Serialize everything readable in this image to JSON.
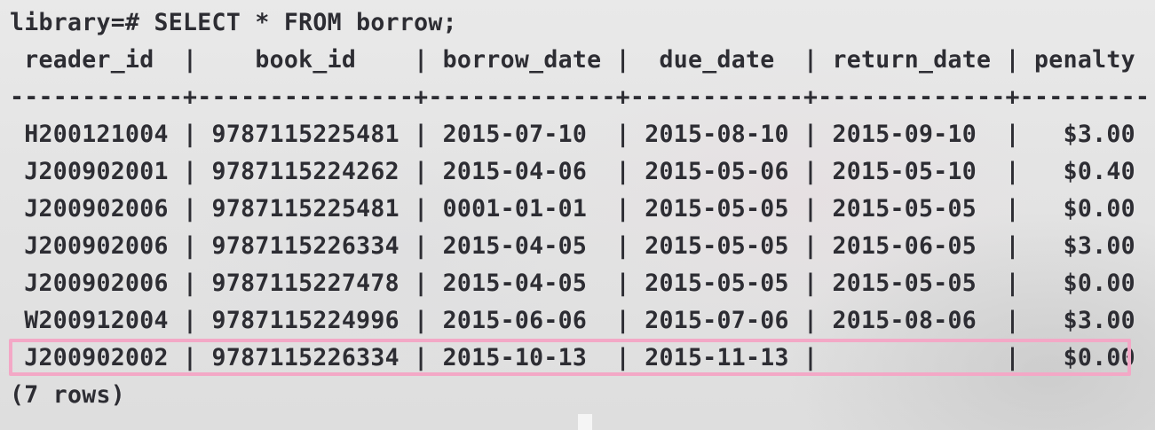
{
  "prompt": {
    "text": "library=# SELECT * FROM borrow;"
  },
  "table": {
    "header": " reader_id  |    book_id    | borrow_date |  due_date  | return_date | penalty",
    "separator": "------------+---------------+-------------+------------+-------------+---------",
    "rows": [
      " H200121004 | 9787115225481 | 2015-07-10  | 2015-08-10 | 2015-09-10  |   $3.00",
      " J200902001 | 9787115224262 | 2015-04-06  | 2015-05-06 | 2015-05-10  |   $0.40",
      " J200902006 | 9787115225481 | 0001-01-01  | 2015-05-05 | 2015-05-05  |   $0.00",
      " J200902006 | 9787115226334 | 2015-04-05  | 2015-05-05 | 2015-06-05  |   $3.00",
      " J200902006 | 9787115227478 | 2015-04-05  | 2015-05-05 | 2015-05-05  |   $0.00",
      " W200912004 | 9787115224996 | 2015-06-06  | 2015-07-06 | 2015-08-06  |   $3.00",
      " J200902002 | 9787115226334 | 2015-10-13  | 2015-11-13 |             |   $0.00"
    ]
  },
  "footer": {
    "text": "(7 rows)"
  },
  "colors": {
    "text": "#2d2d33",
    "highlight": "#f3a8c6",
    "background": "#e5e5e5"
  }
}
